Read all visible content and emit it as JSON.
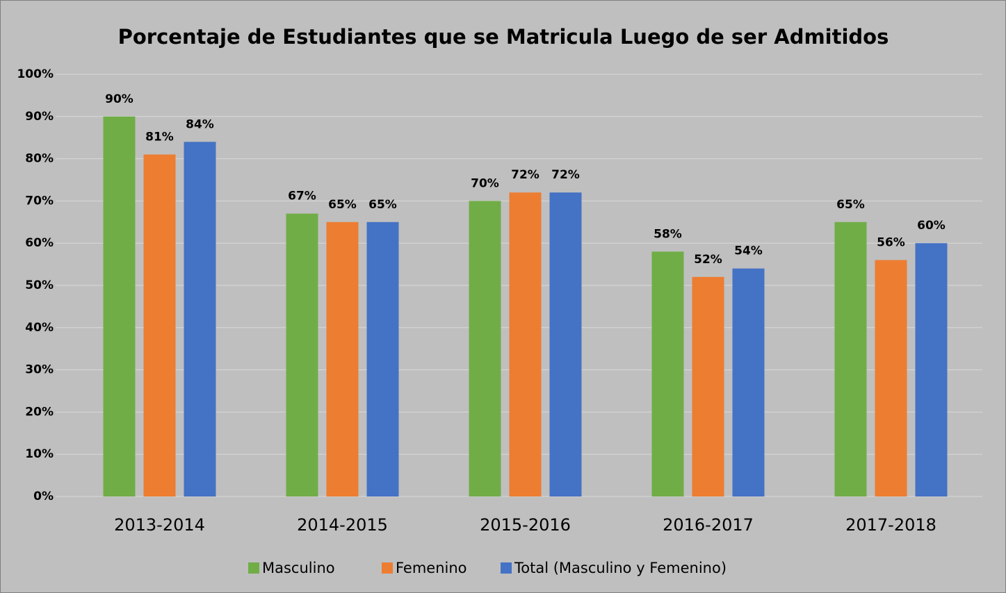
{
  "chart_data": {
    "type": "bar",
    "title": "Porcentaje de Estudiantes que se Matricula Luego de ser Admitidos",
    "categories": [
      "2013-2014",
      "2014-2015",
      "2015-2016",
      "2016-2017",
      "2017-2018"
    ],
    "series": [
      {
        "name": "Masculino",
        "color": "#70ad47",
        "values": [
          90,
          67,
          70,
          58,
          65
        ],
        "value_labels": [
          "90%",
          "67%",
          "70%",
          "58%",
          "65%"
        ]
      },
      {
        "name": "Femenino",
        "color": "#ed7d31",
        "values": [
          81,
          65,
          72,
          52,
          56
        ],
        "value_labels": [
          "81%",
          "65%",
          "72%",
          "52%",
          "56%"
        ]
      },
      {
        "name": "Total (Masculino y Femenino)",
        "color": "#4472c4",
        "values": [
          84,
          65,
          72,
          54,
          60
        ],
        "value_labels": [
          "84%",
          "65%",
          "72%",
          "54%",
          "60%"
        ]
      }
    ],
    "ylim": [
      0,
      100
    ],
    "yticks": [
      {
        "value": 0,
        "label": "0%"
      },
      {
        "value": 10,
        "label": "10%"
      },
      {
        "value": 20,
        "label": "20%"
      },
      {
        "value": 30,
        "label": "30%"
      },
      {
        "value": 40,
        "label": "40%"
      },
      {
        "value": 50,
        "label": "50%"
      },
      {
        "value": 60,
        "label": "60%"
      },
      {
        "value": 70,
        "label": "70%"
      },
      {
        "value": 80,
        "label": "80%"
      },
      {
        "value": 90,
        "label": "90%"
      },
      {
        "value": 100,
        "label": "100%"
      }
    ],
    "grid": true,
    "legend": "bottom"
  }
}
